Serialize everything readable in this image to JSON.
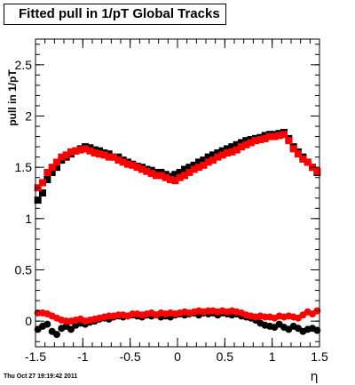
{
  "title": "Fitted pull in 1/pT  Global Tracks",
  "timestamp": "Thu Oct 27 19:19:42 2011",
  "chart_data": {
    "type": "scatter",
    "title": "Fitted pull in 1/pT  Global Tracks",
    "xlabel": "η",
    "ylabel": "pull in 1/pT",
    "xlim": [
      -1.5,
      1.5
    ],
    "ylim": [
      -0.25,
      2.75
    ],
    "x_ticks": [
      -1.5,
      -1,
      -0.5,
      0,
      0.5,
      1,
      1.5
    ],
    "x_tick_labels": [
      "-1.5",
      "-1",
      "-0.5",
      "0",
      "0.5",
      "1",
      "1.5"
    ],
    "y_ticks": [
      0,
      0.5,
      1,
      1.5,
      2,
      2.5
    ],
    "y_tick_labels": [
      "0",
      "0.5",
      "1",
      "1.5",
      "2",
      "2.5"
    ],
    "grid": false,
    "legend": "none",
    "series": [
      {
        "marker": "square",
        "color": "#000000",
        "x": [
          -1.475,
          -1.425,
          -1.375,
          -1.325,
          -1.275,
          -1.225,
          -1.175,
          -1.125,
          -1.075,
          -1.025,
          -0.975,
          -0.925,
          -0.875,
          -0.825,
          -0.775,
          -0.725,
          -0.675,
          -0.625,
          -0.575,
          -0.525,
          -0.475,
          -0.425,
          -0.375,
          -0.325,
          -0.275,
          -0.225,
          -0.175,
          -0.125,
          -0.075,
          -0.025,
          0.025,
          0.075,
          0.125,
          0.175,
          0.225,
          0.275,
          0.325,
          0.375,
          0.425,
          0.475,
          0.525,
          0.575,
          0.625,
          0.675,
          0.725,
          0.775,
          0.825,
          0.875,
          0.925,
          0.975,
          1.025,
          1.075,
          1.125,
          1.175,
          1.225,
          1.275,
          1.325,
          1.375,
          1.425,
          1.475
        ],
        "y": [
          1.18,
          1.25,
          1.38,
          1.45,
          1.5,
          1.57,
          1.6,
          1.63,
          1.66,
          1.68,
          1.7,
          1.69,
          1.67,
          1.66,
          1.64,
          1.63,
          1.6,
          1.6,
          1.57,
          1.55,
          1.53,
          1.51,
          1.5,
          1.48,
          1.47,
          1.45,
          1.45,
          1.43,
          1.41,
          1.43,
          1.45,
          1.48,
          1.5,
          1.52,
          1.55,
          1.57,
          1.6,
          1.62,
          1.64,
          1.66,
          1.68,
          1.7,
          1.72,
          1.74,
          1.76,
          1.77,
          1.78,
          1.79,
          1.81,
          1.82,
          1.82,
          1.83,
          1.84,
          1.78,
          1.7,
          1.65,
          1.6,
          1.55,
          1.5,
          1.45
        ]
      },
      {
        "marker": "square",
        "color": "#ff0000",
        "x": [
          -1.475,
          -1.425,
          -1.375,
          -1.325,
          -1.275,
          -1.225,
          -1.175,
          -1.125,
          -1.075,
          -1.025,
          -0.975,
          -0.925,
          -0.875,
          -0.825,
          -0.775,
          -0.725,
          -0.675,
          -0.625,
          -0.575,
          -0.525,
          -0.475,
          -0.425,
          -0.375,
          -0.325,
          -0.275,
          -0.225,
          -0.175,
          -0.125,
          -0.075,
          -0.025,
          0.025,
          0.075,
          0.125,
          0.175,
          0.225,
          0.275,
          0.325,
          0.375,
          0.425,
          0.475,
          0.525,
          0.575,
          0.625,
          0.675,
          0.725,
          0.775,
          0.825,
          0.875,
          0.925,
          0.975,
          1.025,
          1.075,
          1.125,
          1.175,
          1.225,
          1.275,
          1.325,
          1.375,
          1.425,
          1.475
        ],
        "y": [
          1.3,
          1.35,
          1.45,
          1.5,
          1.55,
          1.6,
          1.62,
          1.65,
          1.66,
          1.67,
          1.68,
          1.66,
          1.64,
          1.63,
          1.62,
          1.6,
          1.6,
          1.57,
          1.55,
          1.53,
          1.52,
          1.5,
          1.48,
          1.46,
          1.44,
          1.42,
          1.42,
          1.4,
          1.38,
          1.37,
          1.4,
          1.42,
          1.45,
          1.48,
          1.5,
          1.52,
          1.55,
          1.57,
          1.6,
          1.62,
          1.64,
          1.65,
          1.67,
          1.7,
          1.72,
          1.74,
          1.76,
          1.77,
          1.78,
          1.8,
          1.8,
          1.81,
          1.82,
          1.76,
          1.68,
          1.63,
          1.58,
          1.55,
          1.5,
          1.46
        ]
      },
      {
        "marker": "circle",
        "color": "#000000",
        "x": [
          -1.475,
          -1.425,
          -1.375,
          -1.325,
          -1.275,
          -1.225,
          -1.175,
          -1.125,
          -1.075,
          -1.025,
          -0.975,
          -0.925,
          -0.875,
          -0.825,
          -0.775,
          -0.725,
          -0.675,
          -0.625,
          -0.575,
          -0.525,
          -0.475,
          -0.425,
          -0.375,
          -0.325,
          -0.275,
          -0.225,
          -0.175,
          -0.125,
          -0.075,
          -0.025,
          0.025,
          0.075,
          0.125,
          0.175,
          0.225,
          0.275,
          0.325,
          0.375,
          0.425,
          0.475,
          0.525,
          0.575,
          0.625,
          0.675,
          0.725,
          0.775,
          0.825,
          0.875,
          0.925,
          0.975,
          1.025,
          1.075,
          1.125,
          1.175,
          1.225,
          1.275,
          1.325,
          1.375,
          1.425,
          1.475
        ],
        "y": [
          -0.08,
          -0.05,
          -0.03,
          -0.1,
          -0.13,
          -0.07,
          -0.05,
          -0.08,
          -0.04,
          -0.02,
          -0.03,
          -0.01,
          0.0,
          0.02,
          0.03,
          0.02,
          0.04,
          0.05,
          0.04,
          0.05,
          0.06,
          0.05,
          0.04,
          0.06,
          0.05,
          0.06,
          0.04,
          0.05,
          0.04,
          0.06,
          0.07,
          0.06,
          0.07,
          0.08,
          0.06,
          0.08,
          0.07,
          0.08,
          0.06,
          0.08,
          0.07,
          0.06,
          0.07,
          0.05,
          0.04,
          0.03,
          0.01,
          -0.02,
          -0.04,
          -0.05,
          -0.06,
          -0.03,
          -0.06,
          -0.08,
          -0.05,
          -0.07,
          -0.1,
          -0.08,
          -0.07,
          -0.09
        ]
      },
      {
        "marker": "circle",
        "color": "#ff0000",
        "x": [
          -1.475,
          -1.425,
          -1.375,
          -1.325,
          -1.275,
          -1.225,
          -1.175,
          -1.125,
          -1.075,
          -1.025,
          -0.975,
          -0.925,
          -0.875,
          -0.825,
          -0.775,
          -0.725,
          -0.675,
          -0.625,
          -0.575,
          -0.525,
          -0.475,
          -0.425,
          -0.375,
          -0.325,
          -0.275,
          -0.225,
          -0.175,
          -0.125,
          -0.075,
          -0.025,
          0.025,
          0.075,
          0.125,
          0.175,
          0.225,
          0.275,
          0.325,
          0.375,
          0.425,
          0.475,
          0.525,
          0.575,
          0.625,
          0.675,
          0.725,
          0.775,
          0.825,
          0.875,
          0.925,
          0.975,
          1.025,
          1.075,
          1.125,
          1.175,
          1.225,
          1.275,
          1.325,
          1.375,
          1.425,
          1.475
        ],
        "y": [
          0.08,
          0.08,
          0.07,
          0.05,
          0.03,
          0.01,
          0.0,
          0.0,
          0.01,
          0.02,
          0.0,
          0.01,
          0.02,
          0.03,
          0.04,
          0.05,
          0.05,
          0.06,
          0.06,
          0.05,
          0.07,
          0.07,
          0.06,
          0.07,
          0.08,
          0.06,
          0.08,
          0.07,
          0.08,
          0.07,
          0.08,
          0.09,
          0.08,
          0.09,
          0.1,
          0.09,
          0.1,
          0.1,
          0.09,
          0.1,
          0.09,
          0.1,
          0.09,
          0.08,
          0.06,
          0.05,
          0.04,
          0.05,
          0.04,
          0.04,
          0.03,
          0.05,
          0.04,
          0.05,
          0.04,
          0.03,
          0.06,
          0.09,
          0.07,
          0.1
        ]
      }
    ]
  }
}
